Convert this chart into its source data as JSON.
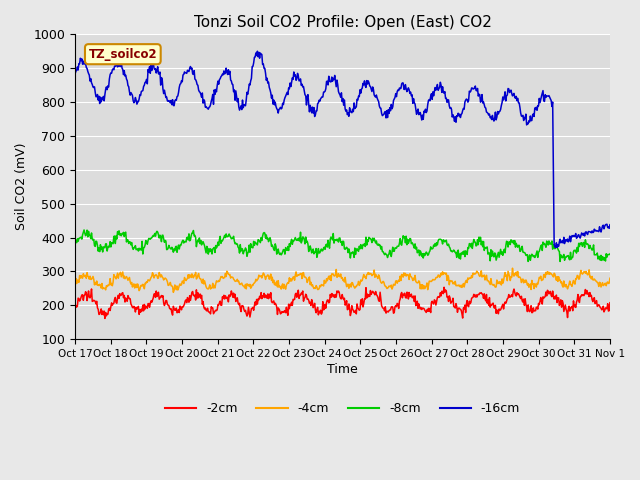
{
  "title": "Tonzi Soil CO2 Profile: Open (East) CO2",
  "ylabel": "Soil CO2 (mV)",
  "xlabel": "Time",
  "ylim": [
    100,
    1000
  ],
  "background_color": "#e8e8e8",
  "plot_bg_color": "#dcdcdc",
  "legend_box_label": "TZ_soilco2",
  "legend_box_facecolor": "#ffffcc",
  "legend_box_edgecolor": "#cc8800",
  "xtick_labels": [
    "Oct 17",
    "Oct 18",
    "Oct 19",
    "Oct 20",
    "Oct 21",
    "Oct 22",
    "Oct 23",
    "Oct 24",
    "Oct 25",
    "Oct 26",
    "Oct 27",
    "Oct 28",
    "Oct 29",
    "Oct 30",
    "Oct 31",
    "Nov 1"
  ],
  "series": {
    "-2cm": {
      "color": "#ff0000"
    },
    "-4cm": {
      "color": "#ffa500"
    },
    "-8cm": {
      "color": "#00cc00"
    },
    "-16cm": {
      "color": "#0000cc"
    }
  },
  "linewidth": 1.1,
  "grid_color": "#ffffff",
  "grid_alpha": 1.0
}
